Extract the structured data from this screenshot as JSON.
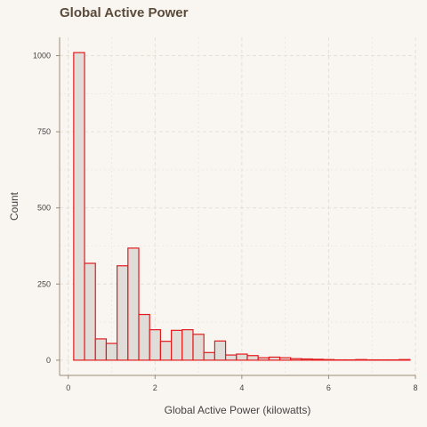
{
  "chart_data": {
    "type": "bar",
    "title": "Global Active Power",
    "xlabel": "Global Active Power (kilowatts)",
    "ylabel": "Count",
    "xlim": [
      -0.2,
      8
    ],
    "ylim": [
      -50,
      1060
    ],
    "x_ticks": [
      "0",
      "2",
      "4",
      "6",
      "8"
    ],
    "y_ticks": [
      "0",
      "250",
      "500",
      "750",
      "1000"
    ],
    "grid": true,
    "bin_width": 0.25,
    "bin_start": 0.125,
    "values": [
      1010,
      318,
      70,
      55,
      310,
      368,
      150,
      100,
      62,
      98,
      100,
      85,
      25,
      63,
      17,
      20,
      15,
      8,
      10,
      8,
      5,
      4,
      3,
      2,
      1,
      1,
      2,
      1,
      1,
      1,
      2
    ],
    "colors": {
      "bar_fill": "#e0dcd8",
      "bar_stroke": "#e31a1c",
      "background": "#f9f6f1",
      "grid": "#e6dfd6",
      "axis": "#9a8a78"
    }
  }
}
